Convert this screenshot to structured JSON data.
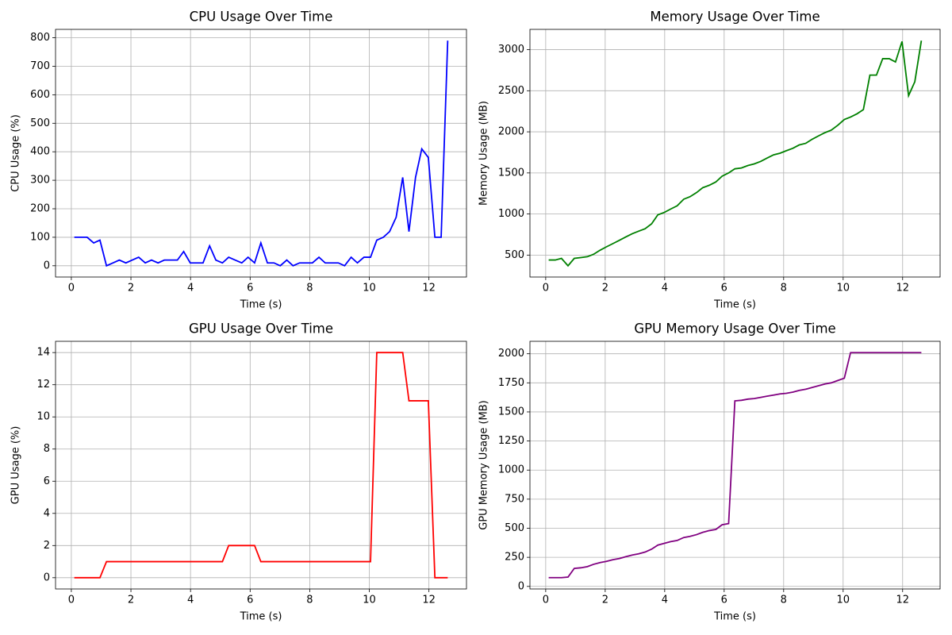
{
  "chart_data": [
    {
      "type": "line",
      "title": "CPU Usage Over Time",
      "xlabel": "Time (s)",
      "ylabel": "CPU Usage (%)",
      "color": "#0000ff",
      "grid": true,
      "x": [
        0.1,
        0.32,
        0.53,
        0.75,
        0.96,
        1.18,
        1.4,
        1.61,
        1.83,
        2.04,
        2.26,
        2.48,
        2.69,
        2.91,
        3.12,
        3.34,
        3.56,
        3.77,
        3.99,
        4.2,
        4.42,
        4.64,
        4.85,
        5.07,
        5.28,
        5.5,
        5.72,
        5.93,
        6.15,
        6.36,
        6.58,
        6.8,
        7.01,
        7.23,
        7.44,
        7.66,
        7.88,
        8.09,
        8.31,
        8.52,
        8.74,
        8.96,
        9.17,
        9.39,
        9.6,
        9.82,
        10.04,
        10.25,
        10.47,
        10.68,
        10.9,
        11.12,
        11.33,
        11.55,
        11.76,
        11.98,
        12.2,
        12.41,
        12.63
      ],
      "values": [
        100,
        100,
        100,
        80,
        90,
        0,
        10,
        20,
        10,
        20,
        30,
        10,
        20,
        10,
        20,
        20,
        20,
        50,
        10,
        10,
        10,
        70,
        20,
        10,
        30,
        20,
        10,
        30,
        10,
        80,
        10,
        10,
        0,
        20,
        0,
        10,
        10,
        10,
        30,
        10,
        10,
        10,
        0,
        30,
        10,
        30,
        30,
        90,
        100,
        120,
        170,
        310,
        120,
        310,
        410,
        380,
        100,
        100,
        790
      ],
      "xlim": [
        -0.53,
        13.26
      ],
      "xticks": [
        0,
        2,
        4,
        6,
        8,
        10,
        12
      ],
      "ylim": [
        -39.5,
        829.5
      ],
      "yticks": [
        0,
        100,
        200,
        300,
        400,
        500,
        600,
        700,
        800
      ]
    },
    {
      "type": "line",
      "title": "Memory Usage Over Time",
      "xlabel": "Time (s)",
      "ylabel": "Memory Usage (MB)",
      "color": "#008000",
      "grid": true,
      "x": [
        0.1,
        0.32,
        0.53,
        0.75,
        0.96,
        1.18,
        1.4,
        1.61,
        1.83,
        2.04,
        2.26,
        2.48,
        2.69,
        2.91,
        3.12,
        3.34,
        3.56,
        3.77,
        3.99,
        4.2,
        4.42,
        4.64,
        4.85,
        5.07,
        5.28,
        5.5,
        5.72,
        5.93,
        6.15,
        6.36,
        6.58,
        6.8,
        7.01,
        7.23,
        7.44,
        7.66,
        7.88,
        8.09,
        8.31,
        8.52,
        8.74,
        8.96,
        9.17,
        9.39,
        9.6,
        9.82,
        10.04,
        10.25,
        10.47,
        10.68,
        10.9,
        11.12,
        11.33,
        11.55,
        11.76,
        11.98,
        12.2,
        12.41,
        12.63
      ],
      "values": [
        440,
        440,
        460,
        370,
        460,
        470,
        480,
        510,
        560,
        600,
        640,
        680,
        720,
        760,
        790,
        820,
        880,
        990,
        1020,
        1060,
        1100,
        1180,
        1210,
        1260,
        1320,
        1350,
        1390,
        1460,
        1500,
        1550,
        1560,
        1590,
        1610,
        1640,
        1680,
        1720,
        1740,
        1770,
        1800,
        1840,
        1860,
        1910,
        1950,
        1990,
        2020,
        2080,
        2150,
        2180,
        2220,
        2270,
        2690,
        2690,
        2890,
        2890,
        2850,
        3100,
        2440,
        2610,
        3110
      ],
      "xlim": [
        -0.53,
        13.26
      ],
      "xticks": [
        0,
        2,
        4,
        6,
        8,
        10,
        12
      ],
      "ylim": [
        233,
        3247
      ],
      "yticks": [
        500,
        1000,
        1500,
        2000,
        2500,
        3000
      ]
    },
    {
      "type": "line",
      "title": "GPU Usage Over Time",
      "xlabel": "Time (s)",
      "ylabel": "GPU Usage (%)",
      "color": "#ff0000",
      "grid": true,
      "x": [
        0.1,
        0.32,
        0.53,
        0.75,
        0.96,
        1.18,
        1.4,
        1.61,
        1.83,
        2.04,
        2.26,
        2.48,
        2.69,
        2.91,
        3.12,
        3.34,
        3.56,
        3.77,
        3.99,
        4.2,
        4.42,
        4.64,
        4.85,
        5.07,
        5.28,
        5.5,
        5.72,
        5.93,
        6.15,
        6.36,
        6.58,
        6.8,
        7.01,
        7.23,
        7.44,
        7.66,
        7.88,
        8.09,
        8.31,
        8.52,
        8.74,
        8.96,
        9.17,
        9.39,
        9.6,
        9.82,
        10.04,
        10.25,
        10.47,
        10.68,
        10.9,
        11.12,
        11.33,
        11.55,
        11.76,
        11.98,
        12.2,
        12.41,
        12.63
      ],
      "values": [
        0,
        0,
        0,
        0,
        0,
        1,
        1,
        1,
        1,
        1,
        1,
        1,
        1,
        1,
        1,
        1,
        1,
        1,
        1,
        1,
        1,
        1,
        1,
        1,
        2,
        2,
        2,
        2,
        2,
        1,
        1,
        1,
        1,
        1,
        1,
        1,
        1,
        1,
        1,
        1,
        1,
        1,
        1,
        1,
        1,
        1,
        1,
        14,
        14,
        14,
        14,
        14,
        11,
        11,
        11,
        11,
        0,
        0,
        0
      ],
      "xlim": [
        -0.53,
        13.26
      ],
      "xticks": [
        0,
        2,
        4,
        6,
        8,
        10,
        12
      ],
      "ylim": [
        -0.7,
        14.7
      ],
      "yticks": [
        0,
        2,
        4,
        6,
        8,
        10,
        12,
        14
      ]
    },
    {
      "type": "line",
      "title": "GPU Memory Usage Over Time",
      "xlabel": "Time (s)",
      "ylabel": "GPU Memory Usage (MB)",
      "color": "#800080",
      "grid": true,
      "x": [
        0.1,
        0.32,
        0.53,
        0.75,
        0.96,
        1.18,
        1.4,
        1.61,
        1.83,
        2.04,
        2.26,
        2.48,
        2.69,
        2.91,
        3.12,
        3.34,
        3.56,
        3.77,
        3.99,
        4.2,
        4.42,
        4.64,
        4.85,
        5.07,
        5.28,
        5.5,
        5.72,
        5.93,
        6.15,
        6.36,
        6.58,
        6.8,
        7.01,
        7.23,
        7.44,
        7.66,
        7.88,
        8.09,
        8.31,
        8.52,
        8.74,
        8.96,
        9.17,
        9.39,
        9.6,
        9.82,
        10.04,
        10.25,
        10.47,
        10.68,
        10.9,
        11.12,
        11.33,
        11.55,
        11.76,
        11.98,
        12.2,
        12.41,
        12.63
      ],
      "values": [
        75,
        75,
        75,
        80,
        155,
        160,
        170,
        190,
        205,
        215,
        230,
        240,
        255,
        270,
        280,
        295,
        320,
        355,
        370,
        385,
        395,
        420,
        430,
        445,
        465,
        480,
        490,
        530,
        540,
        1595,
        1600,
        1610,
        1615,
        1625,
        1635,
        1645,
        1655,
        1660,
        1670,
        1685,
        1695,
        1710,
        1725,
        1740,
        1750,
        1770,
        1790,
        2010,
        2010,
        2010,
        2010,
        2010,
        2010,
        2010,
        2010,
        2010,
        2010,
        2010,
        2010
      ],
      "xlim": [
        -0.53,
        13.26
      ],
      "xticks": [
        0,
        2,
        4,
        6,
        8,
        10,
        12
      ],
      "ylim": [
        -22,
        2107
      ],
      "yticks": [
        0,
        250,
        500,
        750,
        1000,
        1250,
        1500,
        1750,
        2000
      ]
    }
  ]
}
